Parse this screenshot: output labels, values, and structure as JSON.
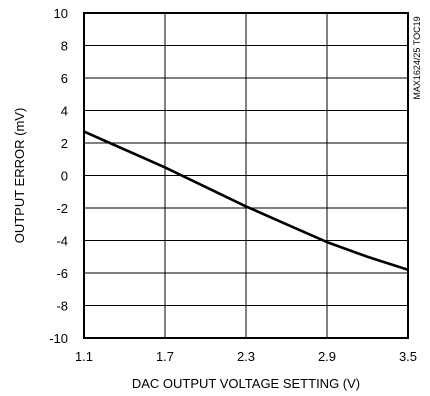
{
  "chart_data": {
    "type": "line",
    "xlabel": "DAC OUTPUT VOLTAGE SETTING (V)",
    "ylabel": "OUTPUT ERROR (mV)",
    "side_note": "MAX1624/25 TOC19",
    "xlim": [
      1.1,
      3.5
    ],
    "ylim": [
      -10,
      10
    ],
    "x_ticks": [
      1.1,
      1.7,
      2.3,
      2.9,
      3.5
    ],
    "x_tick_labels": [
      "1.1",
      "1.7",
      "2.3",
      "2.9",
      "3.5"
    ],
    "y_ticks": [
      10,
      8,
      6,
      4,
      2,
      0,
      -2,
      -4,
      -6,
      -8,
      -10
    ],
    "y_tick_labels": [
      "10",
      "8",
      "6",
      "4",
      "2",
      "0",
      "-2",
      "-4",
      "-6",
      "-8",
      "-10"
    ],
    "grid": true,
    "series": [
      {
        "x": [
          1.1,
          1.4,
          1.7,
          2.0,
          2.3,
          2.6,
          2.9,
          3.2,
          3.5
        ],
        "y": [
          2.7,
          1.6,
          0.5,
          -0.7,
          -1.9,
          -3.0,
          -4.1,
          -5.0,
          -5.8
        ]
      }
    ],
    "line_color": "#000000"
  }
}
